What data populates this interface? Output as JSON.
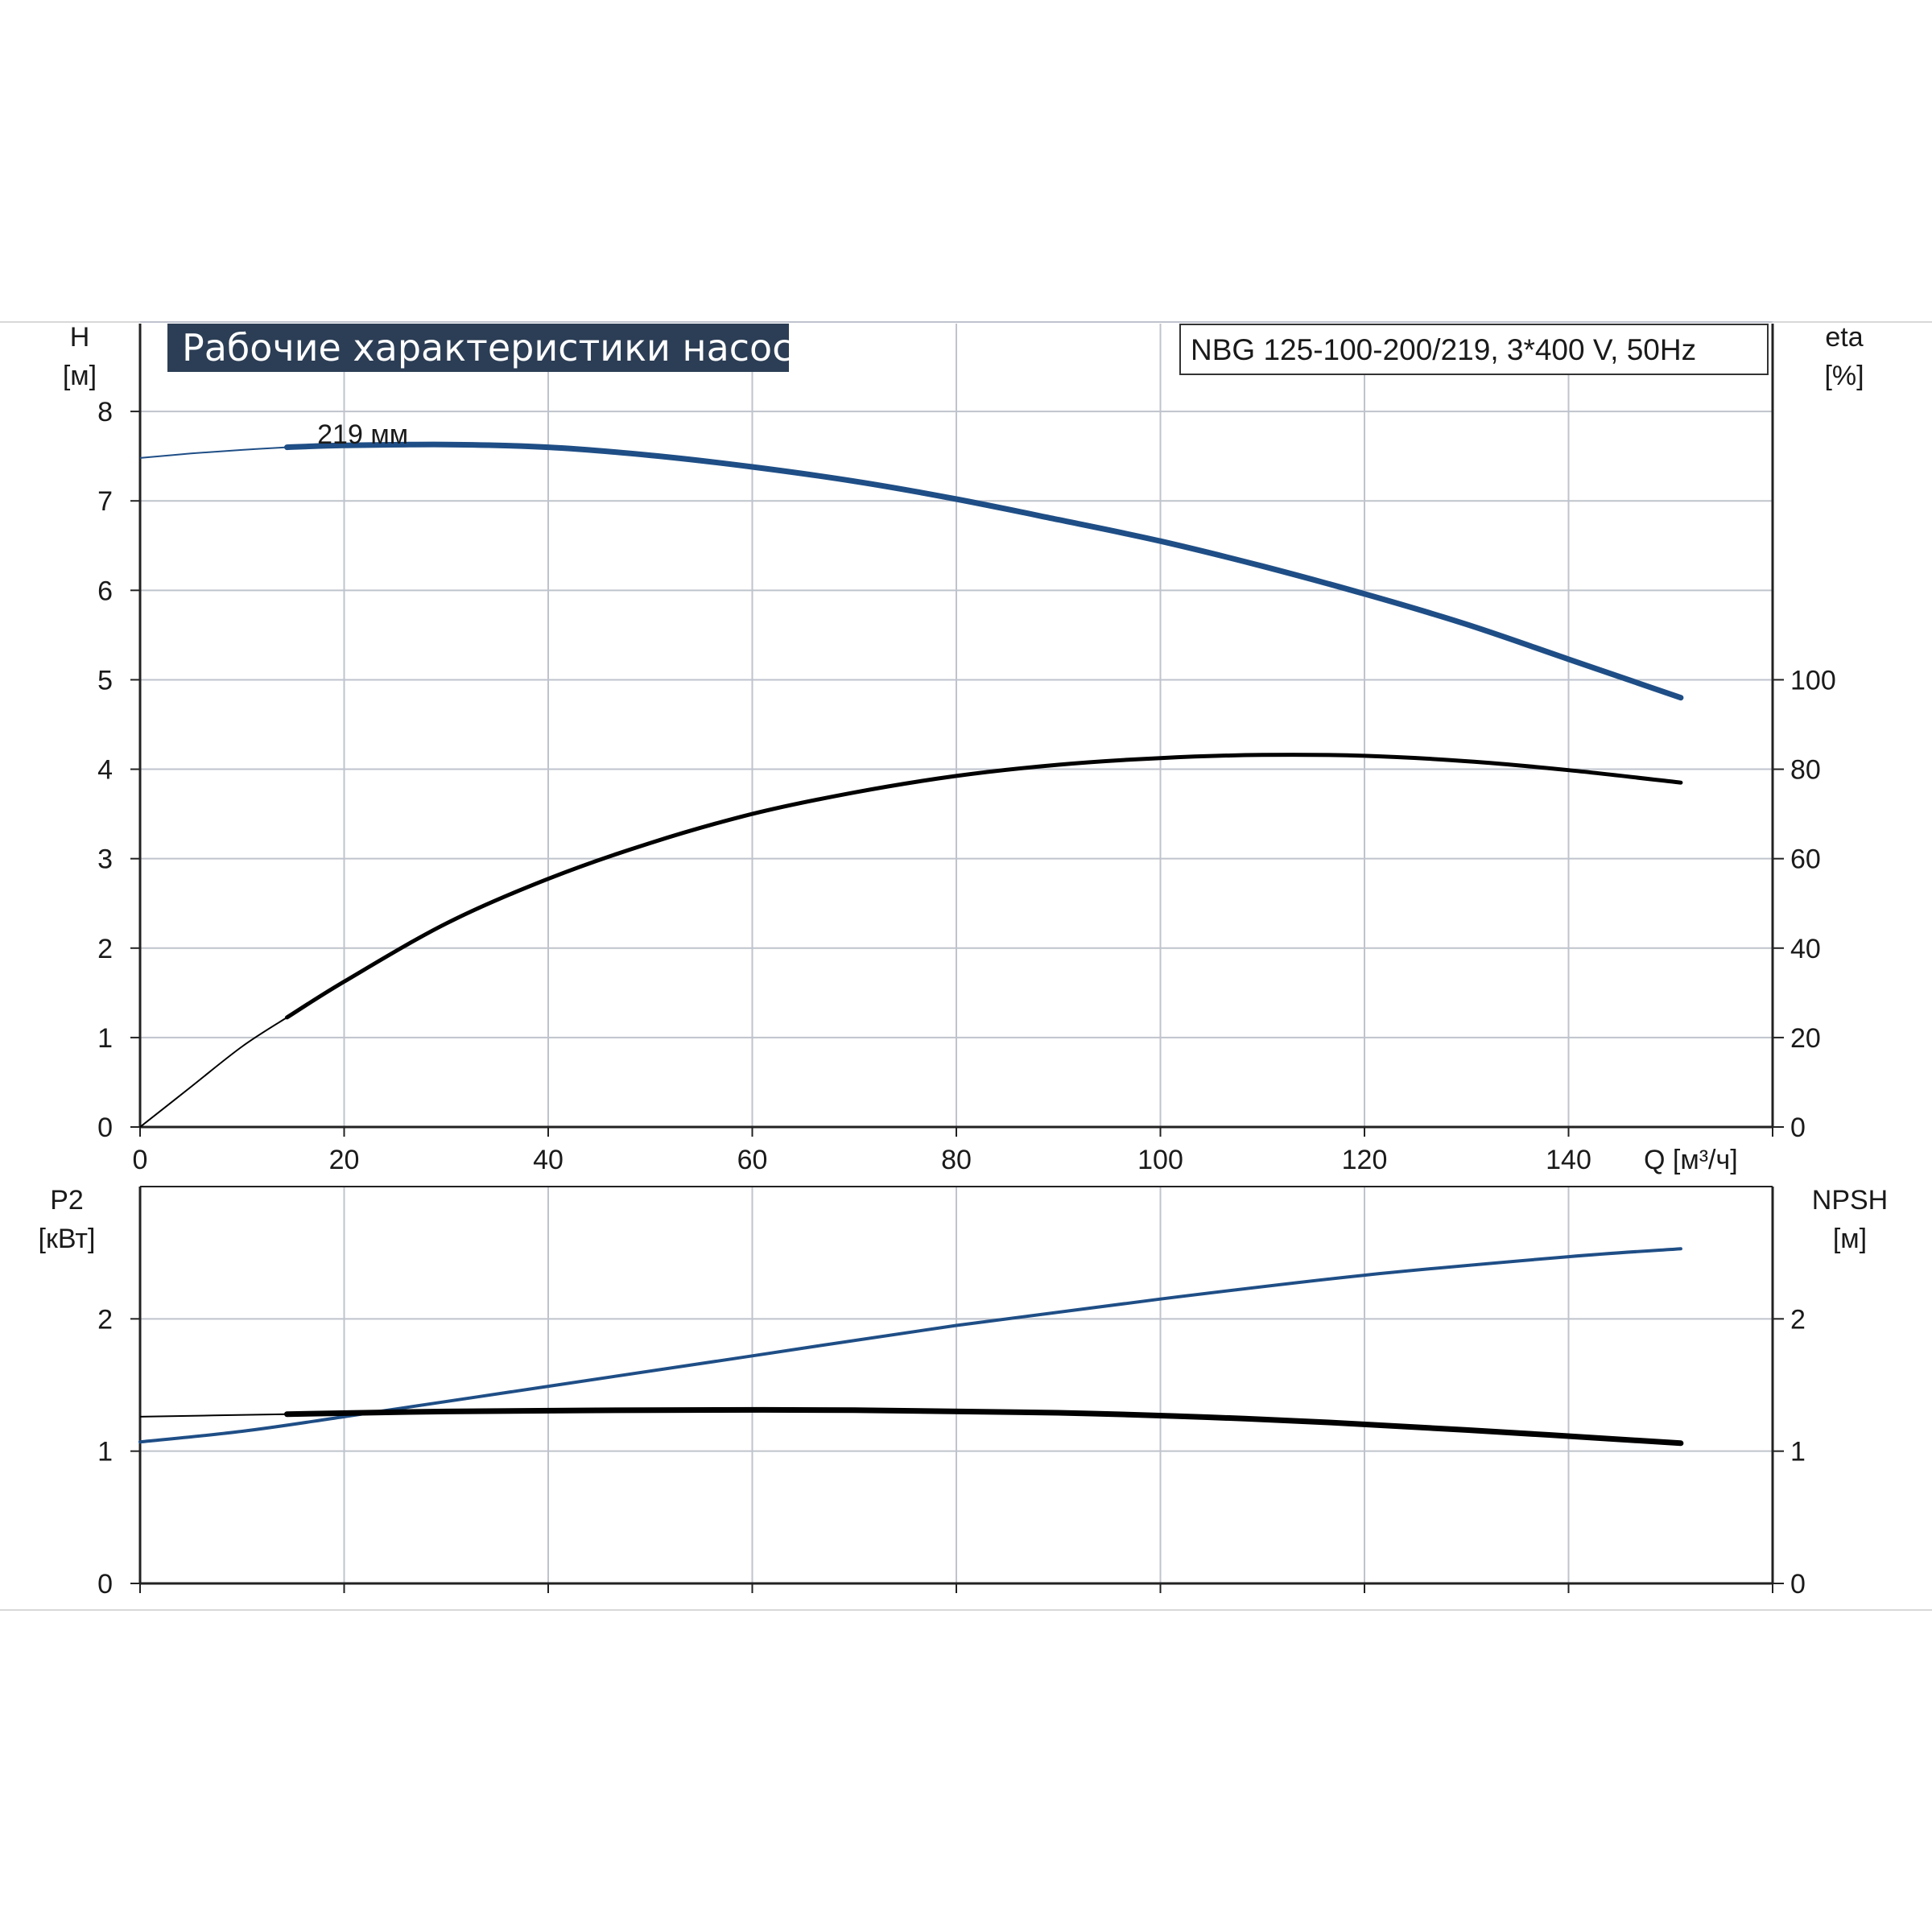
{
  "header": {
    "title": "Рабочие характеристики насоса",
    "model": "NBG 125-100-200/219, 3*400 V, 50Hz"
  },
  "colors": {
    "title_bg": "#2c3e55",
    "pump_blue": "#1f4e86",
    "black": "#000000",
    "grid": "#bfc3cc",
    "axis": "#222222"
  },
  "chart_data": [
    {
      "type": "line",
      "panel": "top",
      "xlabel": "Q [м³/ч]",
      "x_ticks": [
        0,
        20,
        40,
        60,
        80,
        100,
        120,
        140
      ],
      "xlim": [
        0,
        160
      ],
      "left_axis": {
        "label_line1": "H",
        "label_line2": "[м]",
        "ylim": [
          0,
          9
        ],
        "ticks": [
          0,
          1,
          2,
          3,
          4,
          5,
          6,
          7,
          8
        ]
      },
      "right_axis": {
        "label_line1": "eta",
        "label_line2": "[%]",
        "ylim": [
          0,
          180
        ],
        "ticks": [
          0,
          20,
          40,
          60,
          80,
          100
        ]
      },
      "grid": true,
      "annotation": {
        "text": "219 мм",
        "x": 18,
        "y": 7.75
      },
      "series": [
        {
          "key": "head",
          "axis": "left",
          "color": "blue",
          "thin_points": [
            [
              0,
              7.48
            ],
            [
              5,
              7.53
            ],
            [
              10,
              7.57
            ],
            [
              14.4,
              7.6
            ]
          ],
          "points": [
            [
              14.4,
              7.6
            ],
            [
              20,
              7.62
            ],
            [
              30,
              7.63
            ],
            [
              40,
              7.6
            ],
            [
              50,
              7.51
            ],
            [
              60,
              7.38
            ],
            [
              70,
              7.22
            ],
            [
              80,
              7.02
            ],
            [
              90,
              6.79
            ],
            [
              100,
              6.55
            ],
            [
              110,
              6.27
            ],
            [
              120,
              5.96
            ],
            [
              130,
              5.62
            ],
            [
              140,
              5.23
            ],
            [
              151,
              4.8
            ]
          ]
        },
        {
          "key": "efficiency",
          "axis": "right",
          "color": "black",
          "thin_points": [
            [
              0,
              0
            ],
            [
              5,
              9
            ],
            [
              10,
              18
            ],
            [
              14.4,
              24.5
            ]
          ],
          "points": [
            [
              14.4,
              24.5
            ],
            [
              20,
              32.5
            ],
            [
              30,
              45.5
            ],
            [
              40,
              55.5
            ],
            [
              50,
              63.5
            ],
            [
              60,
              70
            ],
            [
              70,
              74.8
            ],
            [
              80,
              78.5
            ],
            [
              90,
              81
            ],
            [
              100,
              82.5
            ],
            [
              110,
              83.2
            ],
            [
              120,
              83
            ],
            [
              130,
              81.8
            ],
            [
              140,
              79.8
            ],
            [
              151,
              77
            ]
          ]
        }
      ]
    },
    {
      "type": "line",
      "panel": "bottom",
      "x_ticks": [
        0,
        20,
        40,
        60,
        80,
        100,
        120,
        140
      ],
      "xlim": [
        0,
        160
      ],
      "left_axis": {
        "label_line1": "P2",
        "label_line2": "[кВт]",
        "ylim": [
          0,
          3
        ],
        "ticks": [
          0,
          1,
          2
        ]
      },
      "right_axis": {
        "label_line1": "NPSH",
        "label_line2": "[м]",
        "ylim": [
          0,
          3
        ],
        "ticks": [
          0,
          1,
          2
        ]
      },
      "grid": true,
      "series": [
        {
          "key": "power",
          "axis": "left",
          "color": "blue",
          "thin_points": [],
          "points": [
            [
              0,
              1.07
            ],
            [
              10,
              1.15
            ],
            [
              20,
              1.26
            ],
            [
              40,
              1.49
            ],
            [
              60,
              1.72
            ],
            [
              80,
              1.95
            ],
            [
              100,
              2.15
            ],
            [
              120,
              2.33
            ],
            [
              140,
              2.47
            ],
            [
              151,
              2.53
            ]
          ]
        },
        {
          "key": "npsh",
          "axis": "right",
          "color": "black",
          "thin_points": [
            [
              0,
              1.26
            ],
            [
              14.4,
              1.28
            ]
          ],
          "points": [
            [
              14.4,
              1.28
            ],
            [
              30,
              1.3
            ],
            [
              50,
              1.31
            ],
            [
              70,
              1.31
            ],
            [
              90,
              1.29
            ],
            [
              110,
              1.24
            ],
            [
              130,
              1.16
            ],
            [
              151,
              1.06
            ]
          ]
        }
      ]
    }
  ]
}
